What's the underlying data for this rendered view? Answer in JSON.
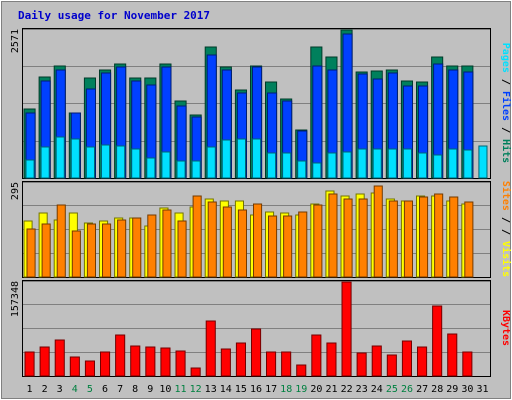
{
  "title": "Daily usage for November 2017",
  "colors": {
    "background": "#c0c0c0",
    "title": "#0000cc",
    "hits": "#00805c",
    "files": "#0040ff",
    "pages": "#00e0ff",
    "visits": "#ffff00",
    "sites": "#ff8000",
    "kbytes": "#ff0000",
    "separator": "#000000",
    "weekday_label": "#000000",
    "weekend_label": "#008040"
  },
  "chart_data": [
    {
      "type": "bar",
      "name": "hits-files-pages",
      "categories": [
        "1",
        "2",
        "3",
        "4",
        "5",
        "6",
        "7",
        "8",
        "9",
        "10",
        "11",
        "12",
        "13",
        "14",
        "15",
        "16",
        "17",
        "18",
        "19",
        "20",
        "21",
        "22",
        "23",
        "24",
        "25",
        "26",
        "27",
        "28",
        "29",
        "30",
        "31"
      ],
      "ymax_label": "2571",
      "ylim": [
        0,
        2571
      ],
      "series": [
        {
          "name": "Hits",
          "values": [
            1190,
            1760,
            1940,
            1130,
            1730,
            1880,
            1980,
            1730,
            1730,
            1980,
            1330,
            1090,
            2280,
            1930,
            1530,
            1950,
            1660,
            1370,
            830,
            2280,
            2100,
            2571,
            1840,
            1860,
            1870,
            1690,
            1660,
            2100,
            1940,
            1940,
            0
          ]
        },
        {
          "name": "Files",
          "values": [
            1130,
            1690,
            1880,
            1130,
            1540,
            1830,
            1930,
            1690,
            1620,
            1930,
            1250,
            1060,
            2130,
            1880,
            1480,
            1920,
            1480,
            1340,
            810,
            1950,
            1880,
            2500,
            1800,
            1720,
            1820,
            1590,
            1600,
            1980,
            1880,
            1840,
            0
          ]
        },
        {
          "name": "Pages",
          "values": [
            320,
            540,
            720,
            680,
            540,
            570,
            560,
            510,
            340,
            460,
            300,
            300,
            540,
            660,
            680,
            670,
            440,
            440,
            300,
            260,
            430,
            450,
            510,
            500,
            510,
            500,
            430,
            400,
            500,
            480,
            560
          ]
        }
      ],
      "right_labels": [
        {
          "text": "Pages",
          "color": "#00e0ff"
        },
        {
          "text": "Files",
          "color": "#0040ff"
        },
        {
          "text": "Hits",
          "color": "#00805c"
        }
      ]
    },
    {
      "type": "bar",
      "name": "visits-sites",
      "categories": [
        "1",
        "2",
        "3",
        "4",
        "5",
        "6",
        "7",
        "8",
        "9",
        "10",
        "11",
        "12",
        "13",
        "14",
        "15",
        "16",
        "17",
        "18",
        "19",
        "20",
        "21",
        "22",
        "23",
        "24",
        "25",
        "26",
        "27",
        "28",
        "29",
        "30",
        "31"
      ],
      "ymax_label": "295",
      "ylim": [
        0,
        295
      ],
      "series": [
        {
          "name": "Visits",
          "values": [
            175,
            200,
            180,
            200,
            170,
            175,
            185,
            185,
            160,
            215,
            200,
            220,
            245,
            240,
            240,
            195,
            205,
            200,
            195,
            230,
            270,
            255,
            260,
            265,
            245,
            240,
            255,
            255,
            240,
            230,
            0
          ]
        },
        {
          "name": "Sites",
          "values": [
            150,
            165,
            225,
            145,
            165,
            165,
            180,
            185,
            195,
            210,
            175,
            255,
            235,
            220,
            210,
            230,
            190,
            190,
            205,
            225,
            260,
            245,
            245,
            285,
            240,
            240,
            250,
            260,
            250,
            235,
            0
          ]
        }
      ],
      "right_labels": [
        {
          "text": "Sites",
          "color": "#ff8000"
        },
        {
          "text": "/",
          "color": "#c0c0c0"
        },
        {
          "text": "Visits",
          "color": "#ffff00"
        }
      ]
    },
    {
      "type": "bar",
      "name": "kbytes",
      "categories": [
        "1",
        "2",
        "3",
        "4",
        "5",
        "6",
        "7",
        "8",
        "9",
        "10",
        "11",
        "12",
        "13",
        "14",
        "15",
        "16",
        "17",
        "18",
        "19",
        "20",
        "21",
        "22",
        "23",
        "24",
        "25",
        "26",
        "27",
        "28",
        "29",
        "30",
        "31"
      ],
      "ymax_label": "157348",
      "ylim": [
        0,
        157348
      ],
      "series": [
        {
          "name": "KBytes",
          "values": [
            40000,
            48000,
            60000,
            31000,
            25000,
            40000,
            69000,
            51000,
            48000,
            47000,
            42000,
            14000,
            92000,
            46000,
            55000,
            78000,
            40000,
            40000,
            18000,
            68000,
            56000,
            157348,
            38000,
            50000,
            35000,
            58000,
            48000,
            118000,
            70000,
            41000,
            0
          ]
        }
      ],
      "right_labels": [
        {
          "text": "KBytes",
          "color": "#ff0000"
        }
      ]
    }
  ],
  "weekend_days": [
    "4",
    "5",
    "11",
    "12",
    "18",
    "19",
    "25",
    "26"
  ]
}
